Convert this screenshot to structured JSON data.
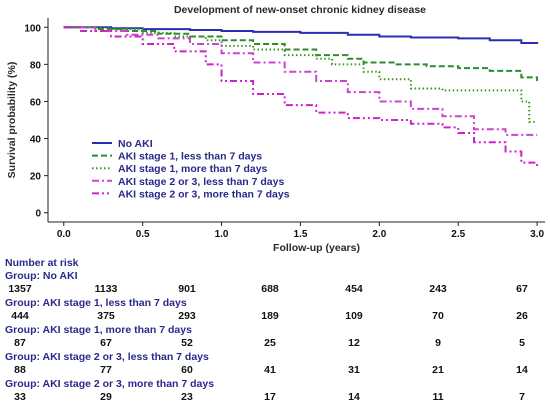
{
  "chart_data": {
    "type": "line",
    "subtype": "kaplan-meier step curves",
    "title": "Development of new-onset chronic kidney disease",
    "xlabel": "Follow-up (years)",
    "ylabel": "Survival probability (%)",
    "xlim": [
      -0.1,
      3.05
    ],
    "ylim": [
      -5,
      105
    ],
    "xticks": [
      "0.0",
      "0.5",
      "1.0",
      "1.5",
      "2.0",
      "2.5",
      "3.0"
    ],
    "xtick_values": [
      0,
      0.5,
      1.0,
      1.5,
      2.0,
      2.5,
      3.0
    ],
    "yticks": [
      "0",
      "20",
      "40",
      "60",
      "80",
      "100"
    ],
    "ytick_values": [
      0,
      20,
      40,
      60,
      80,
      100
    ],
    "grid": false,
    "legend_position": "lower-left",
    "series": [
      {
        "name": "No AKI",
        "color": "#2d2db4",
        "dash": "solid",
        "x": [
          0,
          0.3,
          0.5,
          0.8,
          1.0,
          1.2,
          1.5,
          1.8,
          2.0,
          2.2,
          2.5,
          2.7,
          2.9,
          3.0
        ],
        "y": [
          100,
          99.5,
          99,
          98.5,
          98,
          97.5,
          97,
          96,
          95,
          94.5,
          94,
          93,
          91.5,
          91
        ]
      },
      {
        "name": "AKI stage 1, less than 7 days",
        "color": "#2e8b2e",
        "dash": "dashed",
        "x": [
          0,
          0.2,
          0.4,
          0.6,
          0.8,
          1.0,
          1.2,
          1.4,
          1.6,
          1.8,
          1.9,
          2.1,
          2.3,
          2.5,
          2.7,
          2.9,
          3.0
        ],
        "y": [
          100,
          99,
          98,
          96.5,
          95,
          93,
          91,
          88,
          85,
          83,
          81,
          80,
          79,
          78,
          76.5,
          73,
          71
        ]
      },
      {
        "name": "AKI stage 1, more than 7 days",
        "color": "#3a9a1a",
        "dash": "dotted",
        "x": [
          0,
          0.3,
          0.5,
          0.7,
          0.9,
          1.0,
          1.2,
          1.4,
          1.6,
          1.7,
          1.9,
          2.0,
          2.2,
          2.4,
          2.6,
          2.9,
          2.95,
          3.0
        ],
        "y": [
          100,
          99,
          97,
          95,
          93,
          90,
          88,
          85,
          83,
          80,
          76,
          72,
          67,
          66,
          66,
          60,
          49,
          49
        ]
      },
      {
        "name": "AKI stage 2 or 3, less than 7 days",
        "color": "#cc44cc",
        "dash": "dashdot",
        "x": [
          0,
          0.2,
          0.4,
          0.6,
          0.8,
          1.0,
          1.2,
          1.4,
          1.6,
          1.8,
          2.0,
          2.2,
          2.4,
          2.6,
          2.8,
          3.0
        ],
        "y": [
          100,
          98,
          96,
          94,
          91,
          86,
          81,
          76,
          71,
          65,
          60,
          56,
          52,
          45,
          42,
          42
        ]
      },
      {
        "name": "AKI stage 2 or 3, more than 7 days",
        "color": "#cc22cc",
        "dash": "dashdotdot",
        "x": [
          0,
          0.1,
          0.3,
          0.5,
          0.7,
          0.9,
          1.0,
          1.2,
          1.4,
          1.6,
          1.8,
          2.0,
          2.2,
          2.4,
          2.5,
          2.6,
          2.8,
          2.9,
          3.0
        ],
        "y": [
          100,
          98,
          95,
          91,
          87,
          80,
          71,
          64,
          58,
          54,
          51,
          50,
          48,
          46,
          43,
          38,
          33,
          27,
          25
        ]
      }
    ]
  },
  "risk_table": {
    "title": "Number at risk",
    "groups": [
      {
        "label": "Group: No AKI",
        "values": [
          "1357",
          "1133",
          "901",
          "688",
          "454",
          "243",
          "67"
        ]
      },
      {
        "label": "Group: AKI stage 1, less than 7 days",
        "values": [
          "444",
          "375",
          "293",
          "189",
          "109",
          "70",
          "26"
        ]
      },
      {
        "label": "Group: AKI stage 1, more than 7 days",
        "values": [
          "87",
          "67",
          "52",
          "25",
          "12",
          "9",
          "5"
        ]
      },
      {
        "label": "Group: AKI stage 2 or 3, less than 7 days",
        "values": [
          "88",
          "77",
          "60",
          "41",
          "31",
          "21",
          "14"
        ]
      },
      {
        "label": "Group: AKI stage 2 or 3, more than 7 days",
        "values": [
          "33",
          "29",
          "23",
          "17",
          "14",
          "11",
          "7"
        ]
      }
    ]
  }
}
